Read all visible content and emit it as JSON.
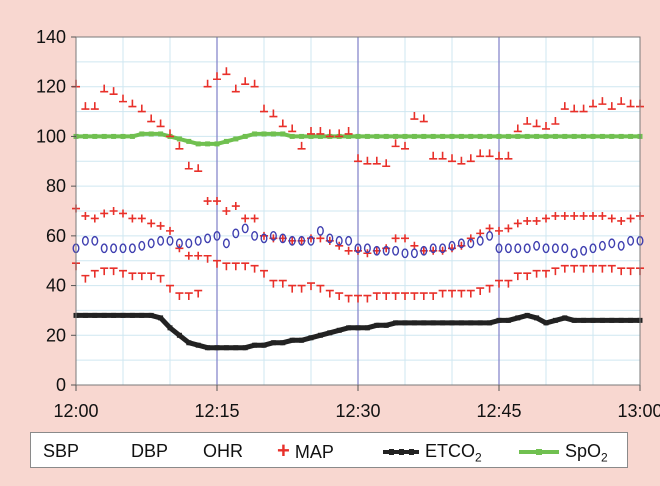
{
  "chart_data": {
    "type": "scatter",
    "x_ticks": [
      "12:00",
      "12:15",
      "12:30",
      "12:45",
      "13:00"
    ],
    "y_ticks": [
      "0",
      "20",
      "40",
      "60",
      "80",
      "100",
      "120",
      "140"
    ],
    "ylim": [
      0,
      140
    ],
    "xlim_minutes": [
      0,
      60
    ],
    "grid": true,
    "legend_position": "bottom",
    "colors": {
      "sbp": "#e8302a",
      "dbp": "#e8302a",
      "ohr": "#3f3fb0",
      "map": "#e8302a",
      "etco2": "#222222",
      "spo2": "#70c050",
      "plot_bg": "#ffffff",
      "grid": "#cfe7f1",
      "vline": "#8888cc"
    },
    "legend": {
      "sbp": "SBP",
      "dbp": "DBP",
      "ohr": "OHR",
      "map": "MAP",
      "etco2": "ETCO",
      "etco2_sub": "2",
      "spo2": "SpO",
      "spo2_sub": "2"
    },
    "series": [
      {
        "name": "SBP",
        "key": "sbp",
        "marker": "sbp",
        "x": [
          0,
          1,
          2,
          3,
          4,
          5,
          6,
          7,
          8,
          9,
          10,
          11,
          12,
          13,
          14,
          15,
          16,
          17,
          18,
          19,
          20,
          21,
          22,
          23,
          24,
          25,
          26,
          27,
          28,
          29,
          30,
          31,
          32,
          33,
          34,
          35,
          36,
          37,
          38,
          39,
          40,
          41,
          42,
          43,
          44,
          45,
          46,
          47,
          48,
          49,
          50,
          51,
          52,
          53,
          54,
          55,
          56,
          57,
          58,
          59,
          60
        ],
        "y": [
          120,
          111,
          111,
          118,
          117,
          114,
          112,
          110,
          106,
          104,
          100,
          95,
          87,
          86,
          120,
          123,
          125,
          118,
          121,
          120,
          110,
          108,
          104,
          102,
          95,
          101,
          101,
          100,
          100,
          101,
          90,
          89,
          89,
          88,
          96,
          95,
          107,
          106,
          91,
          91,
          90,
          89,
          90,
          92,
          92,
          91,
          91,
          102,
          105,
          104,
          103,
          105,
          111,
          110,
          110,
          112,
          113,
          111,
          113,
          112,
          112
        ]
      },
      {
        "name": "DBP",
        "key": "dbp",
        "marker": "dbp",
        "x": [
          0,
          1,
          2,
          3,
          4,
          5,
          6,
          7,
          8,
          9,
          10,
          11,
          12,
          13,
          14,
          15,
          16,
          17,
          18,
          19,
          20,
          21,
          22,
          23,
          24,
          25,
          26,
          27,
          28,
          29,
          30,
          31,
          32,
          33,
          34,
          35,
          36,
          37,
          38,
          39,
          40,
          41,
          42,
          43,
          44,
          45,
          46,
          47,
          48,
          49,
          50,
          51,
          52,
          53,
          54,
          55,
          56,
          57,
          58,
          59,
          60
        ],
        "y": [
          49,
          44,
          46,
          47,
          47,
          46,
          45,
          45,
          45,
          44,
          40,
          37,
          37,
          38,
          52,
          50,
          49,
          49,
          49,
          48,
          46,
          42,
          42,
          40,
          40,
          41,
          40,
          38,
          37,
          36,
          36,
          36,
          37,
          37,
          37,
          37,
          37,
          37,
          37,
          38,
          38,
          38,
          38,
          39,
          40,
          42,
          42,
          45,
          45,
          46,
          46,
          47,
          48,
          48,
          48,
          48,
          48,
          48,
          47,
          47,
          47
        ]
      },
      {
        "name": "OHR",
        "key": "ohr",
        "marker": "ohr",
        "x": [
          0,
          1,
          2,
          3,
          4,
          5,
          6,
          7,
          8,
          9,
          10,
          11,
          12,
          13,
          14,
          15,
          16,
          17,
          18,
          19,
          20,
          21,
          22,
          23,
          24,
          25,
          26,
          27,
          28,
          29,
          30,
          31,
          32,
          33,
          34,
          35,
          36,
          37,
          38,
          39,
          40,
          41,
          42,
          43,
          44,
          45,
          46,
          47,
          48,
          49,
          50,
          51,
          52,
          53,
          54,
          55,
          56,
          57,
          58,
          59,
          60
        ],
        "y": [
          55,
          58,
          58,
          55,
          55,
          55,
          55,
          56,
          57,
          58,
          58,
          57,
          57,
          58,
          59,
          60,
          57,
          61,
          63,
          60,
          59,
          60,
          59,
          58,
          58,
          58,
          62,
          59,
          58,
          58,
          55,
          55,
          54,
          54,
          54,
          53,
          53,
          54,
          55,
          55,
          56,
          57,
          57,
          58,
          60,
          55,
          55,
          55,
          55,
          56,
          55,
          55,
          55,
          53,
          54,
          55,
          56,
          57,
          56,
          58,
          58
        ]
      },
      {
        "name": "MAP",
        "key": "map",
        "marker": "map",
        "x": [
          0,
          1,
          2,
          3,
          4,
          5,
          6,
          7,
          8,
          9,
          10,
          11,
          12,
          13,
          14,
          15,
          16,
          17,
          18,
          19,
          20,
          21,
          22,
          23,
          24,
          25,
          26,
          27,
          28,
          29,
          30,
          31,
          32,
          33,
          34,
          35,
          36,
          37,
          38,
          39,
          40,
          41,
          42,
          43,
          44,
          45,
          46,
          47,
          48,
          49,
          50,
          51,
          52,
          53,
          54,
          55,
          56,
          57,
          58,
          59,
          60
        ],
        "y": [
          71,
          68,
          67,
          69,
          70,
          69,
          67,
          67,
          65,
          64,
          62,
          55,
          52,
          52,
          74,
          74,
          70,
          72,
          67,
          67,
          60,
          59,
          59,
          58,
          58,
          59,
          59,
          58,
          56,
          54,
          54,
          53,
          54,
          55,
          59,
          59,
          56,
          54,
          54,
          54,
          55,
          56,
          59,
          61,
          63,
          62,
          63,
          65,
          66,
          66,
          67,
          68,
          68,
          68,
          68,
          68,
          68,
          67,
          66,
          67,
          68
        ]
      },
      {
        "name": "ETCO2",
        "key": "etco2",
        "marker": "etco2",
        "x": [
          0,
          1,
          2,
          3,
          4,
          5,
          6,
          7,
          8,
          9,
          10,
          11,
          12,
          13,
          14,
          15,
          16,
          17,
          18,
          19,
          20,
          21,
          22,
          23,
          24,
          25,
          26,
          27,
          28,
          29,
          30,
          31,
          32,
          33,
          34,
          35,
          36,
          37,
          38,
          39,
          40,
          41,
          42,
          43,
          44,
          45,
          46,
          47,
          48,
          49,
          50,
          51,
          52,
          53,
          54,
          55,
          56,
          57,
          58,
          59,
          60
        ],
        "y": [
          28,
          28,
          28,
          28,
          28,
          28,
          28,
          28,
          28,
          27,
          23,
          20,
          17,
          16,
          15,
          15,
          15,
          15,
          15,
          16,
          16,
          17,
          17,
          18,
          18,
          19,
          20,
          21,
          22,
          23,
          23,
          23,
          24,
          24,
          25,
          25,
          25,
          25,
          25,
          25,
          25,
          25,
          25,
          25,
          25,
          26,
          26,
          27,
          28,
          27,
          25,
          26,
          27,
          26,
          26,
          26,
          26,
          26,
          26,
          26,
          26
        ]
      },
      {
        "name": "SpO2",
        "key": "spo2",
        "marker": "spo2",
        "x": [
          0,
          1,
          2,
          3,
          4,
          5,
          6,
          7,
          8,
          9,
          10,
          11,
          12,
          13,
          14,
          15,
          16,
          17,
          18,
          19,
          20,
          21,
          22,
          23,
          24,
          25,
          26,
          27,
          28,
          29,
          30,
          31,
          32,
          33,
          34,
          35,
          36,
          37,
          38,
          39,
          40,
          41,
          42,
          43,
          44,
          45,
          46,
          47,
          48,
          49,
          50,
          51,
          52,
          53,
          54,
          55,
          56,
          57,
          58,
          59,
          60
        ],
        "y": [
          100,
          100,
          100,
          100,
          100,
          100,
          100,
          101,
          101,
          101,
          100,
          99,
          98,
          97,
          97,
          97,
          98,
          99,
          100,
          101,
          101,
          101,
          101,
          100,
          100,
          100,
          100,
          100,
          100,
          100,
          100,
          100,
          100,
          100,
          100,
          100,
          100,
          100,
          100,
          100,
          100,
          100,
          100,
          100,
          100,
          100,
          100,
          100,
          100,
          100,
          100,
          100,
          100,
          100,
          100,
          100,
          100,
          100,
          100,
          100,
          100
        ]
      }
    ]
  }
}
